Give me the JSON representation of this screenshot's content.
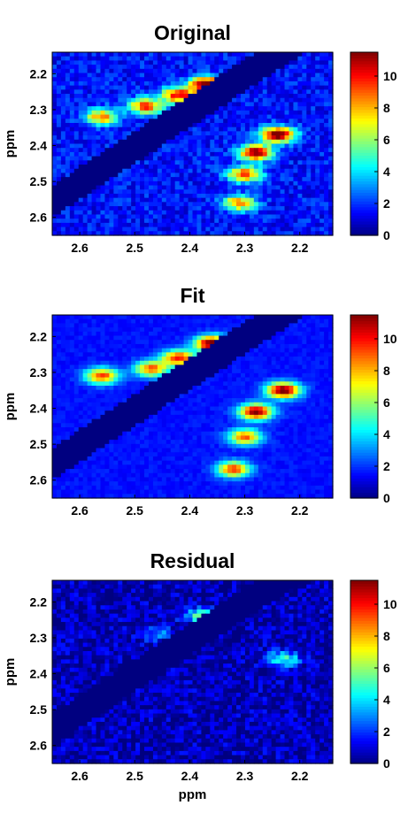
{
  "colorbar": {
    "min": 0,
    "max": 11.5,
    "ticks": [
      "0",
      "2",
      "4",
      "6",
      "8",
      "10"
    ],
    "tick_values": [
      0,
      2,
      4,
      6,
      8,
      10
    ]
  },
  "chart_data": [
    {
      "type": "heatmap",
      "title": "Original",
      "xlabel": "",
      "ylabel": "ppm",
      "xlim": [
        2.65,
        2.14
      ],
      "ylim": [
        2.14,
        2.65
      ],
      "x_ticks": [
        "2.6",
        "2.5",
        "2.4",
        "2.3",
        "2.2"
      ],
      "x_tick_values": [
        2.6,
        2.5,
        2.4,
        2.3,
        2.2
      ],
      "y_ticks": [
        "2.2",
        "2.3",
        "2.4",
        "2.5",
        "2.6"
      ],
      "y_tick_values": [
        2.2,
        2.3,
        2.4,
        2.5,
        2.6
      ],
      "band_offset_limits": [
        0.05,
        0.14
      ],
      "noise": 0.9,
      "peaks": [
        {
          "x": 2.37,
          "y": 2.23,
          "value": 11
        },
        {
          "x": 2.42,
          "y": 2.26,
          "value": 9
        },
        {
          "x": 2.48,
          "y": 2.29,
          "value": 8
        },
        {
          "x": 2.56,
          "y": 2.32,
          "value": 7
        },
        {
          "x": 2.24,
          "y": 2.37,
          "value": 11
        },
        {
          "x": 2.28,
          "y": 2.42,
          "value": 10
        },
        {
          "x": 2.3,
          "y": 2.48,
          "value": 8
        },
        {
          "x": 2.31,
          "y": 2.56,
          "value": 7
        }
      ]
    },
    {
      "type": "heatmap",
      "title": "Fit",
      "xlabel": "",
      "ylabel": "ppm",
      "xlim": [
        2.65,
        2.14
      ],
      "ylim": [
        2.14,
        2.65
      ],
      "x_ticks": [
        "2.6",
        "2.5",
        "2.4",
        "2.3",
        "2.2"
      ],
      "x_tick_values": [
        2.6,
        2.5,
        2.4,
        2.3,
        2.2
      ],
      "y_ticks": [
        "2.2",
        "2.3",
        "2.4",
        "2.5",
        "2.6"
      ],
      "y_tick_values": [
        2.2,
        2.3,
        2.4,
        2.5,
        2.6
      ],
      "band_offset_limits": [
        0.05,
        0.14
      ],
      "noise": 0.3,
      "peaks": [
        {
          "x": 2.36,
          "y": 2.22,
          "value": 10.5
        },
        {
          "x": 2.42,
          "y": 2.26,
          "value": 8.5
        },
        {
          "x": 2.47,
          "y": 2.29,
          "value": 7.5
        },
        {
          "x": 2.56,
          "y": 2.31,
          "value": 8
        },
        {
          "x": 2.23,
          "y": 2.35,
          "value": 10.5
        },
        {
          "x": 2.28,
          "y": 2.41,
          "value": 10
        },
        {
          "x": 2.3,
          "y": 2.48,
          "value": 7.5
        },
        {
          "x": 2.32,
          "y": 2.57,
          "value": 8
        }
      ]
    },
    {
      "type": "heatmap",
      "title": "Residual",
      "xlabel": "ppm",
      "ylabel": "ppm",
      "xlim": [
        2.65,
        2.14
      ],
      "ylim": [
        2.14,
        2.65
      ],
      "x_ticks": [
        "2.6",
        "2.5",
        "2.4",
        "2.3",
        "2.2"
      ],
      "x_tick_values": [
        2.6,
        2.5,
        2.4,
        2.3,
        2.2
      ],
      "y_ticks": [
        "2.2",
        "2.3",
        "2.4",
        "2.5",
        "2.6"
      ],
      "y_tick_values": [
        2.2,
        2.3,
        2.4,
        2.5,
        2.6
      ],
      "band_offset_limits": [
        0.05,
        0.14
      ],
      "noise": 1.1,
      "peaks": [
        {
          "x": 2.38,
          "y": 2.24,
          "value": 4.5
        },
        {
          "x": 2.23,
          "y": 2.36,
          "value": 4.5
        },
        {
          "x": 2.46,
          "y": 2.29,
          "value": 2.2
        }
      ]
    }
  ]
}
